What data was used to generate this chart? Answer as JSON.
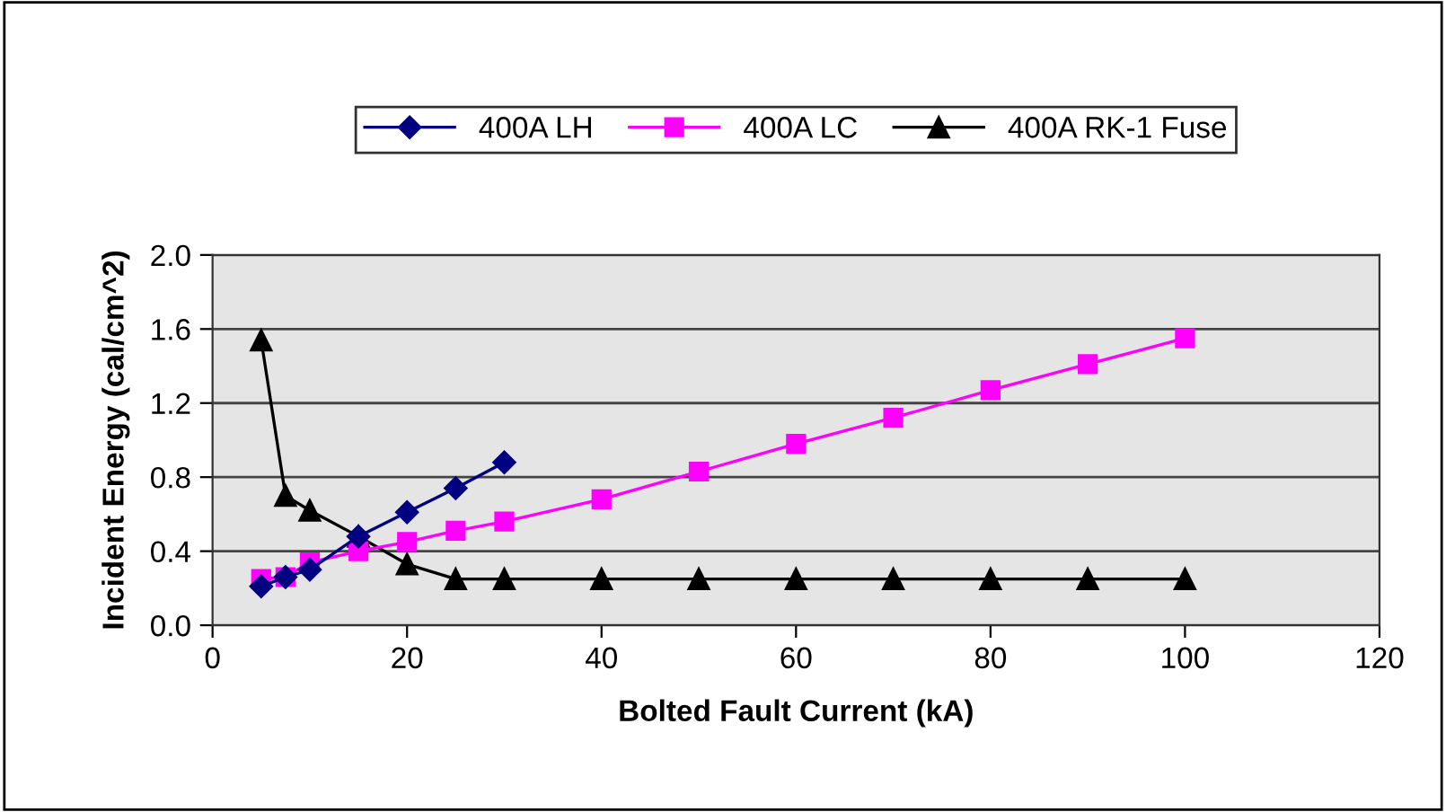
{
  "chart_data": {
    "type": "line",
    "xlabel": "Bolted Fault Current (kA)",
    "ylabel": "Incident Energy (cal/cm^2)",
    "xlim": [
      0,
      120
    ],
    "xticks": [
      0,
      20,
      40,
      60,
      80,
      100,
      120
    ],
    "ylim": [
      0,
      2.0
    ],
    "yticks": [
      {
        "value": 0,
        "label": "0.0"
      },
      {
        "value": 0.4,
        "label": "0.4"
      },
      {
        "value": 0.8,
        "label": "0.8"
      },
      {
        "value": 1.2,
        "label": "1.2"
      },
      {
        "value": 1.6,
        "label": "1.6"
      },
      {
        "value": 2.0,
        "label": "2.0"
      }
    ],
    "grid": "y",
    "legend": "top",
    "line_style": "solid",
    "series": [
      {
        "name": "400A LH",
        "color": "#000080",
        "marker": "diamond",
        "x": [
          5,
          7.5,
          10,
          15,
          20,
          25,
          30
        ],
        "values": [
          0.21,
          0.26,
          0.3,
          0.48,
          0.61,
          0.74,
          0.88
        ]
      },
      {
        "name": "400A LC",
        "color": "#ff00ff",
        "marker": "square",
        "x": [
          5,
          7.5,
          10,
          15,
          20,
          25,
          30,
          40,
          50,
          60,
          70,
          80,
          90,
          100
        ],
        "values": [
          0.25,
          0.26,
          0.34,
          0.4,
          0.45,
          0.51,
          0.56,
          0.68,
          0.83,
          0.98,
          1.12,
          1.27,
          1.41,
          1.55
        ]
      },
      {
        "name": "400A RK-1 Fuse",
        "color": "#000000",
        "marker": "triangle",
        "x": [
          5,
          7.5,
          10,
          15,
          20,
          25,
          30,
          40,
          50,
          60,
          70,
          80,
          90,
          100
        ],
        "values": [
          1.54,
          0.7,
          0.62,
          0.48,
          0.33,
          0.25,
          0.25,
          0.25,
          0.25,
          0.25,
          0.25,
          0.25,
          0.25,
          0.25
        ]
      }
    ]
  }
}
